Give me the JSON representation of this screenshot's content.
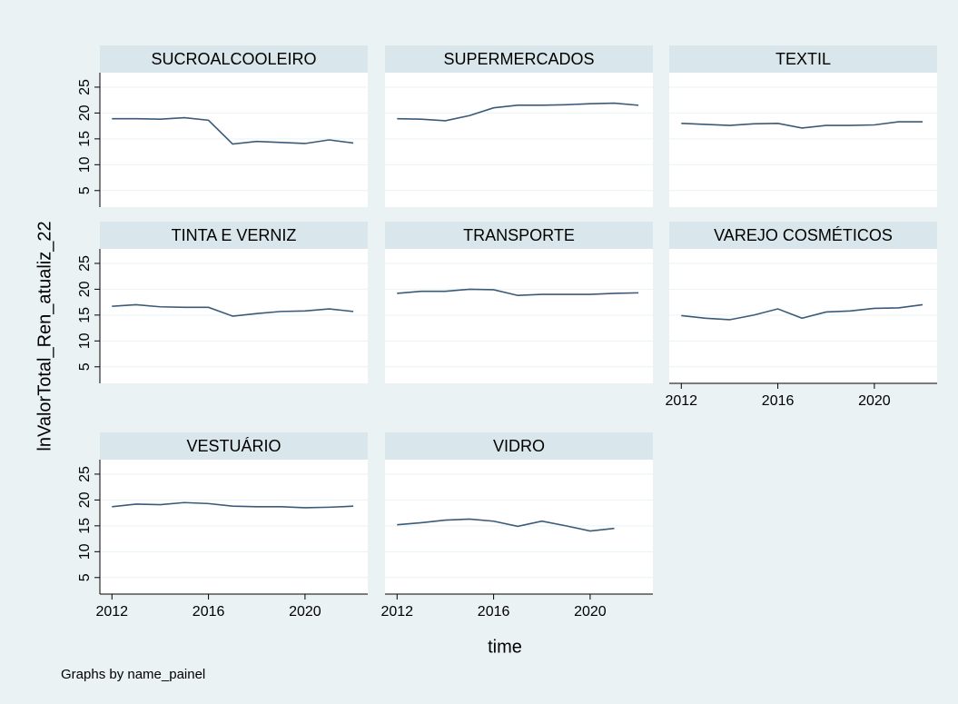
{
  "chart_data": [
    {
      "type": "line",
      "title": "SUCROALCOOLEIRO",
      "x": [
        2012,
        2013,
        2014,
        2015,
        2016,
        2017,
        2018,
        2019,
        2020,
        2021,
        2022
      ],
      "values": [
        18.9,
        18.9,
        18.8,
        19.1,
        18.6,
        14.0,
        14.5,
        14.3,
        14.1,
        14.8,
        14.2
      ],
      "color": "#3b5a78",
      "xlim": [
        2011.5,
        2022.6
      ],
      "ylim": [
        1.8,
        27.8
      ],
      "xticks": [
        2012,
        2016,
        2020
      ],
      "yticks": [
        5,
        10,
        15,
        20,
        25
      ],
      "grid": true
    },
    {
      "type": "line",
      "title": "SUPERMERCADOS",
      "x": [
        2012,
        2013,
        2014,
        2015,
        2016,
        2017,
        2018,
        2019,
        2020,
        2021,
        2022
      ],
      "values": [
        18.9,
        18.8,
        18.5,
        19.5,
        21.0,
        21.5,
        21.5,
        21.6,
        21.8,
        21.9,
        21.5
      ],
      "color": "#3b5a78",
      "xlim": [
        2011.5,
        2022.6
      ],
      "ylim": [
        1.8,
        27.8
      ],
      "xticks": [
        2012,
        2016,
        2020
      ],
      "yticks": [
        5,
        10,
        15,
        20,
        25
      ],
      "grid": true
    },
    {
      "type": "line",
      "title": "TEXTIL",
      "x": [
        2012,
        2013,
        2014,
        2015,
        2016,
        2017,
        2018,
        2019,
        2020,
        2021,
        2022
      ],
      "values": [
        18.0,
        17.8,
        17.6,
        17.9,
        18.0,
        17.1,
        17.6,
        17.6,
        17.7,
        18.3,
        18.3
      ],
      "color": "#3b5a78",
      "xlim": [
        2011.5,
        2022.6
      ],
      "ylim": [
        1.8,
        27.8
      ],
      "xticks": [
        2012,
        2016,
        2020
      ],
      "yticks": [
        5,
        10,
        15,
        20,
        25
      ],
      "grid": true
    },
    {
      "type": "line",
      "title": "TINTA E VERNIZ",
      "x": [
        2012,
        2013,
        2014,
        2015,
        2016,
        2017,
        2018,
        2019,
        2020,
        2021,
        2022
      ],
      "values": [
        16.7,
        17.0,
        16.6,
        16.5,
        16.5,
        14.8,
        15.3,
        15.7,
        15.8,
        16.2,
        15.7
      ],
      "color": "#3b5a78",
      "xlim": [
        2011.5,
        2022.6
      ],
      "ylim": [
        1.8,
        27.8
      ],
      "xticks": [
        2012,
        2016,
        2020
      ],
      "yticks": [
        5,
        10,
        15,
        20,
        25
      ],
      "grid": true
    },
    {
      "type": "line",
      "title": "TRANSPORTE",
      "x": [
        2012,
        2013,
        2014,
        2015,
        2016,
        2017,
        2018,
        2019,
        2020,
        2021,
        2022
      ],
      "values": [
        19.2,
        19.6,
        19.6,
        20.0,
        19.9,
        18.8,
        19.0,
        19.0,
        19.0,
        19.2,
        19.3
      ],
      "color": "#3b5a78",
      "xlim": [
        2011.5,
        2022.6
      ],
      "ylim": [
        1.8,
        27.8
      ],
      "xticks": [
        2012,
        2016,
        2020
      ],
      "yticks": [
        5,
        10,
        15,
        20,
        25
      ],
      "grid": true
    },
    {
      "type": "line",
      "title": "VAREJO COSMÉTICOS",
      "x": [
        2012,
        2013,
        2014,
        2015,
        2016,
        2017,
        2018,
        2019,
        2020,
        2021,
        2022
      ],
      "values": [
        14.9,
        14.4,
        14.1,
        15.0,
        16.2,
        14.4,
        15.6,
        15.8,
        16.3,
        16.4,
        17.0
      ],
      "color": "#3b5a78",
      "xlim": [
        2011.5,
        2022.6
      ],
      "ylim": [
        1.8,
        27.8
      ],
      "xticks": [
        2012,
        2016,
        2020
      ],
      "yticks": [
        5,
        10,
        15,
        20,
        25
      ],
      "grid": true
    },
    {
      "type": "line",
      "title": "VESTUÁRIO",
      "x": [
        2012,
        2013,
        2014,
        2015,
        2016,
        2017,
        2018,
        2019,
        2020,
        2021,
        2022
      ],
      "values": [
        18.7,
        19.2,
        19.1,
        19.5,
        19.3,
        18.8,
        18.7,
        18.7,
        18.5,
        18.6,
        18.8
      ],
      "color": "#3b5a78",
      "xlim": [
        2011.5,
        2022.6
      ],
      "ylim": [
        1.8,
        27.8
      ],
      "xticks": [
        2012,
        2016,
        2020
      ],
      "yticks": [
        5,
        10,
        15,
        20,
        25
      ],
      "grid": true
    },
    {
      "type": "line",
      "title": "VIDRO",
      "x": [
        2012,
        2013,
        2014,
        2015,
        2016,
        2017,
        2018,
        2019,
        2020,
        2021,
        2022
      ],
      "values": [
        15.2,
        15.6,
        16.1,
        16.3,
        15.9,
        14.9,
        15.9,
        15.0,
        14.0,
        14.5,
        null
      ],
      "color": "#3b5a78",
      "xlim": [
        2011.5,
        2022.6
      ],
      "ylim": [
        1.8,
        27.8
      ],
      "xticks": [
        2012,
        2016,
        2020
      ],
      "yticks": [
        5,
        10,
        15,
        20,
        25
      ],
      "grid": true
    }
  ],
  "y_label": "lnValorTotal_Ren_atualiz_22",
  "x_label": "time",
  "note": "Graphs by name_painel"
}
